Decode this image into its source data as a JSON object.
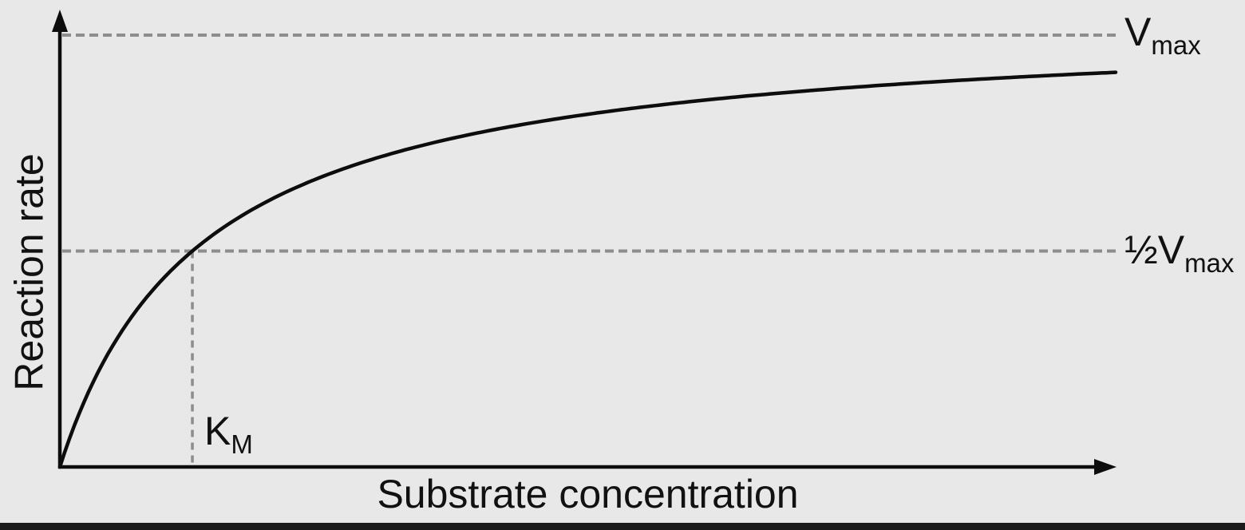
{
  "figure": {
    "background_color": "#e8e8e8",
    "axis_color": "#0d0d0d",
    "curve_color": "#0d0d0d",
    "dash_color": "#8d8d8d",
    "text_color": "#111111",
    "bottom_bar_color": "#1b1b1b"
  },
  "labels": {
    "y_axis": "Reaction rate",
    "x_axis": "Substrate concentration",
    "vmax": {
      "main": "V",
      "sub": "max"
    },
    "half_vmax": {
      "main": "½V",
      "sub": "max"
    },
    "km": {
      "main": "K",
      "sub": "M"
    }
  },
  "chart_data": {
    "type": "line",
    "title": "",
    "xlabel": "Substrate concentration",
    "ylabel": "Reaction rate",
    "x_ticks": [],
    "y_ticks": [],
    "grid": false,
    "axes_arrows": true,
    "annotations": [
      "Vmax",
      "½Vmax",
      "KM"
    ],
    "reference_lines": [
      {
        "id": "vmax",
        "label": "Vmax",
        "orientation": "horizontal",
        "v_over_vmax": 1.0,
        "style": "dashed"
      },
      {
        "id": "half_vmax",
        "label": "½Vmax",
        "orientation": "horizontal",
        "v_over_vmax": 0.5,
        "style": "dashed"
      },
      {
        "id": "km",
        "label": "KM",
        "orientation": "vertical",
        "x_fraction": 0.1255,
        "extends_to_v_over_vmax": 0.5,
        "style": "dashed"
      }
    ],
    "series": [
      {
        "name": "reaction-rate-curve",
        "style": "solid",
        "model": {
          "form": "v/Vmax = A*x/(k+x), x = fraction of x-axis length",
          "A_v_over_vmax": 1.037,
          "k_x_fraction": 0.1348
        },
        "points": {
          "x_fraction": [
            0,
            0.004,
            0.008,
            0.015,
            0.026,
            0.038,
            0.053,
            0.068,
            0.087,
            0.106,
            0.1255,
            0.151,
            0.181,
            0.219,
            0.265,
            0.318,
            0.378,
            0.454,
            0.544,
            0.643,
            0.756,
            0.877,
            1.0
          ],
          "v_over_vmax": [
            0,
            0.028,
            0.055,
            0.104,
            0.169,
            0.225,
            0.29,
            0.346,
            0.404,
            0.454,
            0.498,
            0.546,
            0.593,
            0.64,
            0.685,
            0.726,
            0.763,
            0.798,
            0.83,
            0.856,
            0.879,
            0.898,
            0.913
          ]
        }
      }
    ]
  }
}
